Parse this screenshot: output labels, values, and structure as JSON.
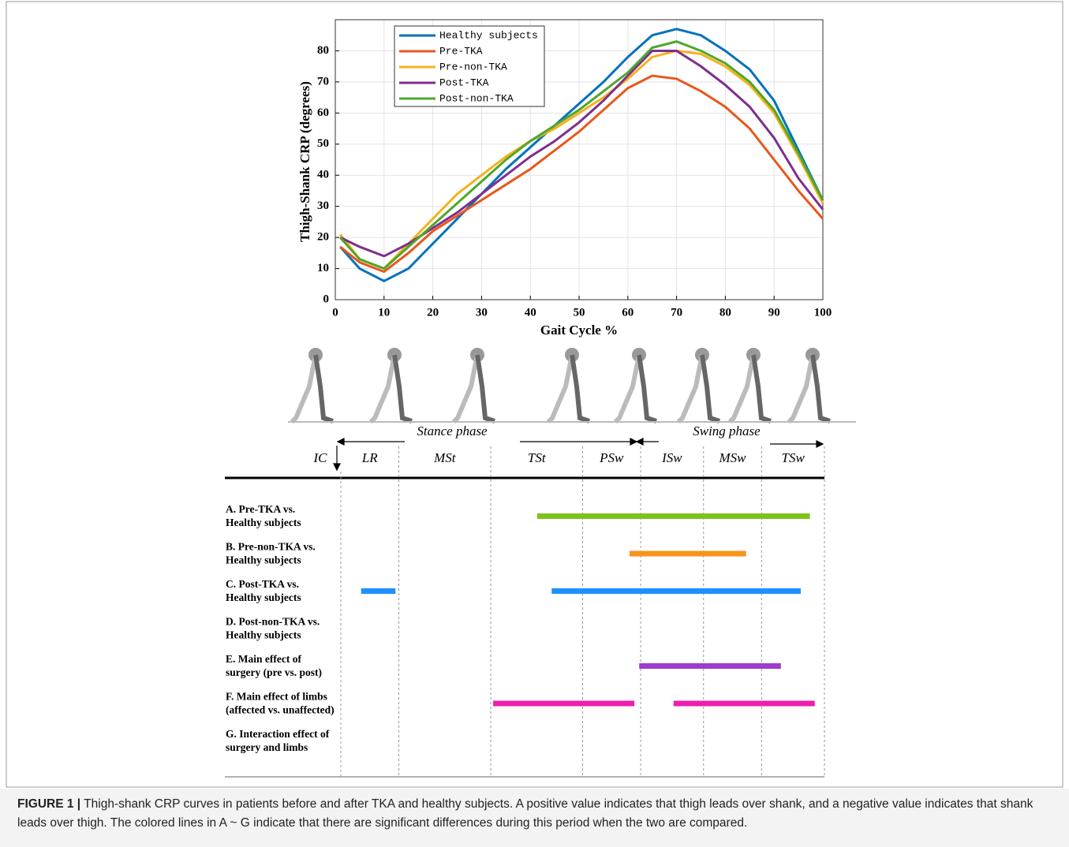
{
  "chart_data": [
    {
      "type": "line",
      "xlabel": "Gait Cycle %",
      "ylabel": "Thigh-Shank CRP (degrees)",
      "x": [
        1,
        5,
        10,
        15,
        20,
        25,
        30,
        35,
        40,
        45,
        50,
        55,
        60,
        65,
        70,
        75,
        80,
        85,
        90,
        95,
        100
      ],
      "series": [
        {
          "name": "Healthy subjects",
          "color": "#0072bd",
          "values": [
            17,
            10,
            6,
            10,
            18,
            26,
            34,
            42,
            49,
            56,
            63,
            70,
            78,
            85,
            87,
            85,
            80,
            74,
            64,
            48,
            32
          ]
        },
        {
          "name": "Pre-TKA",
          "color": "#e8571c",
          "values": [
            17,
            12,
            9,
            15,
            22,
            27,
            32,
            37,
            42,
            48,
            54,
            61,
            68,
            72,
            71,
            67,
            62,
            55,
            45,
            35,
            26
          ]
        },
        {
          "name": "Pre-non-TKA",
          "color": "#f5b21c",
          "values": [
            21,
            13,
            10,
            18,
            26,
            34,
            40,
            46,
            51,
            55,
            60,
            65,
            71,
            78,
            80,
            79,
            75,
            69,
            60,
            46,
            31
          ]
        },
        {
          "name": "Post-TKA",
          "color": "#7e2f8e",
          "values": [
            20,
            17,
            14,
            18,
            23,
            28,
            34,
            40,
            46,
            51,
            57,
            64,
            72,
            80,
            80,
            75,
            69,
            62,
            52,
            39,
            29
          ]
        },
        {
          "name": "Post-non-TKA",
          "color": "#4ea72c",
          "values": [
            20,
            13,
            10,
            17,
            24,
            31,
            38,
            45,
            51,
            56,
            61,
            67,
            73,
            81,
            83,
            80,
            76,
            70,
            61,
            47,
            32
          ]
        }
      ],
      "xlim": [
        0,
        100
      ],
      "xticks": [
        0,
        10,
        20,
        30,
        40,
        50,
        60,
        70,
        80,
        90,
        100
      ],
      "ylim": [
        0,
        90
      ],
      "yticks": [
        0,
        10,
        20,
        30,
        40,
        50,
        60,
        70,
        80
      ],
      "grid": true,
      "legend": "top-left"
    },
    {
      "type": "timeline",
      "phase_groups": [
        "Stance phase",
        "Swing phase"
      ],
      "phases": [
        "IC",
        "LR",
        "MSt",
        "TSt",
        "PSw",
        "ISw",
        "MSw",
        "TSw"
      ],
      "boundaries": [
        0,
        12,
        31,
        50,
        62,
        75,
        87,
        100
      ],
      "rows": [
        {
          "label": [
            "A. Pre-TKA vs.",
            "Healthy subjects"
          ],
          "color": "#7ec31c",
          "segments": [
            [
              40.6,
              97
            ]
          ]
        },
        {
          "label": [
            "B. Pre-non-TKA vs.",
            "Healthy subjects"
          ],
          "color": "#f7941d",
          "segments": [
            [
              59.7,
              83.8
            ]
          ]
        },
        {
          "label": [
            "C. Post-TKA vs.",
            "Healthy subjects"
          ],
          "color": "#1e90ff",
          "segments": [
            [
              4.2,
              11.3
            ],
            [
              43.6,
              95.1
            ]
          ]
        },
        {
          "label": [
            "D. Post-non-TKA vs.",
            "Healthy subjects"
          ],
          "color": "#1e90ff",
          "segments": []
        },
        {
          "label": [
            "E. Main effect of",
            "surgery (pre vs. post)"
          ],
          "color": "#9d3ccf",
          "segments": [
            [
              61.7,
              91
            ]
          ]
        },
        {
          "label": [
            "F. Main effect of limbs",
            "(affected vs. unaffected)"
          ],
          "color": "#ec1fae",
          "segments": [
            [
              31.5,
              60.7
            ],
            [
              68.8,
              98
            ]
          ]
        },
        {
          "label": [
            "G. Interaction effect of",
            "surgery and limbs"
          ],
          "color": "#1e90ff",
          "segments": []
        }
      ]
    }
  ],
  "caption": {
    "label": "FIGURE 1 |",
    "text": "Thigh-shank CRP curves in patients before and after TKA and healthy subjects. A positive value indicates that thigh leads over shank, and a negative value indicates that shank leads over thigh. The colored lines in A ~ G indicate that there are significant differences during this period when the two are compared."
  }
}
